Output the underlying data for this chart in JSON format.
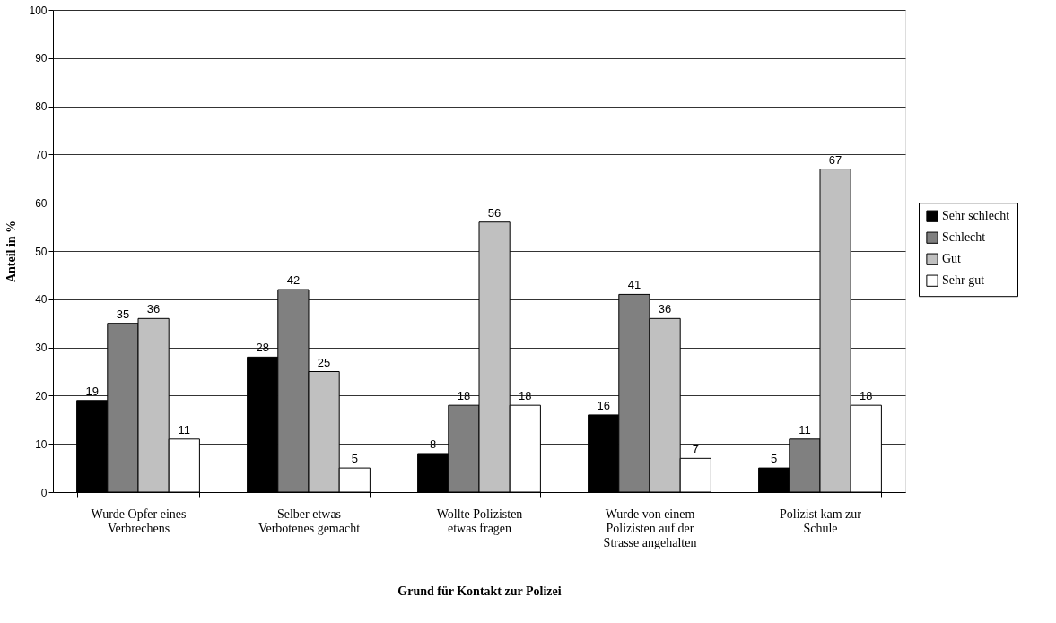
{
  "chart_data": {
    "type": "bar",
    "xlabel": "Grund für Kontakt zur Polizei",
    "ylabel": "Anteil in %",
    "categories": [
      "Wurde Opfer eines Verbrechens",
      "Selber etwas Verbotenes gemacht",
      "Wollte Polizisten etwas fragen",
      "Wurde von einem Polizisten auf der Strasse angehalten",
      "Polizist kam zur Schule"
    ],
    "series": [
      {
        "name": "Sehr schlecht",
        "color": "#000000",
        "values": [
          19,
          28,
          8,
          16,
          5
        ]
      },
      {
        "name": "Schlecht",
        "color": "#808080",
        "values": [
          35,
          42,
          18,
          41,
          11
        ]
      },
      {
        "name": "Gut",
        "color": "#c0c0c0",
        "values": [
          36,
          25,
          56,
          36,
          67
        ]
      },
      {
        "name": "Sehr gut",
        "color": "#ffffff",
        "values": [
          11,
          5,
          18,
          7,
          18
        ]
      }
    ],
    "ylim": [
      0,
      100
    ],
    "yticks": [
      0,
      10,
      20,
      30,
      40,
      50,
      60,
      70,
      80,
      90,
      100
    ],
    "grid": "y",
    "legend": "right",
    "data_labels": true
  }
}
